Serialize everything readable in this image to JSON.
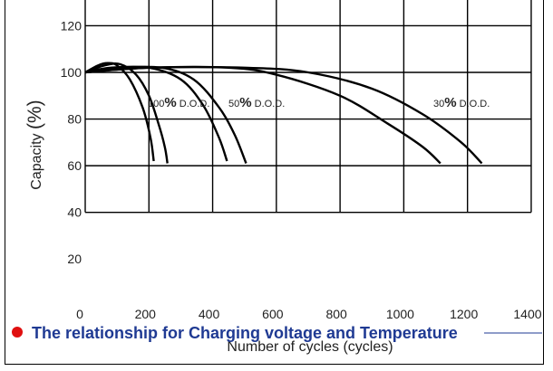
{
  "section_heading": {
    "text": "The relationship for Charging voltage and Temperature",
    "color": "#1f3a93",
    "bullet_color": "#e01010"
  },
  "chart_data": {
    "type": "line",
    "xlabel": "Number of cycles (cycles)",
    "ylabel_prefix": "Capacity ",
    "ylabel_unit": "(%)",
    "x_ticks": [
      0,
      200,
      400,
      600,
      800,
      1000,
      1200,
      1400
    ],
    "y_ticks": [
      20,
      40,
      60,
      80,
      100,
      120
    ],
    "xlim": [
      0,
      1400
    ],
    "ylim": [
      0,
      130
    ],
    "grid": true,
    "annotations": [
      {
        "prefix": "100",
        "pct": "%",
        "suffix": " D.O.D."
      },
      {
        "prefix": "50",
        "pct": "%",
        "suffix": " D.O.D."
      },
      {
        "prefix": "30",
        "pct": "%",
        "suffix": " D.O.D. "
      }
    ],
    "series": [
      {
        "points": [
          [
            0,
            100
          ],
          [
            40,
            103
          ],
          [
            70,
            104
          ],
          [
            100,
            103
          ],
          [
            140,
            97
          ],
          [
            180,
            85
          ],
          [
            205,
            72
          ],
          [
            215,
            62
          ]
        ]
      },
      {
        "points": [
          [
            0,
            100
          ],
          [
            60,
            103
          ],
          [
            110,
            103.5
          ],
          [
            160,
            99
          ],
          [
            200,
            90
          ],
          [
            230,
            78
          ],
          [
            250,
            68
          ],
          [
            258,
            61
          ]
        ]
      },
      {
        "points": [
          [
            0,
            100
          ],
          [
            80,
            102
          ],
          [
            200,
            102
          ],
          [
            300,
            97
          ],
          [
            370,
            86
          ],
          [
            420,
            72
          ],
          [
            445,
            62
          ]
        ]
      },
      {
        "points": [
          [
            0,
            100
          ],
          [
            100,
            102
          ],
          [
            240,
            102
          ],
          [
            340,
            97
          ],
          [
            420,
            85
          ],
          [
            470,
            73
          ],
          [
            505,
            61
          ]
        ]
      },
      {
        "points": [
          [
            0,
            100
          ],
          [
            200,
            102
          ],
          [
            450,
            102
          ],
          [
            600,
            99
          ],
          [
            800,
            90
          ],
          [
            950,
            78
          ],
          [
            1060,
            68
          ],
          [
            1115,
            61
          ]
        ]
      },
      {
        "points": [
          [
            0,
            100
          ],
          [
            200,
            102
          ],
          [
            500,
            102
          ],
          [
            700,
            100
          ],
          [
            900,
            93
          ],
          [
            1060,
            82
          ],
          [
            1180,
            70
          ],
          [
            1245,
            61
          ]
        ]
      }
    ]
  }
}
